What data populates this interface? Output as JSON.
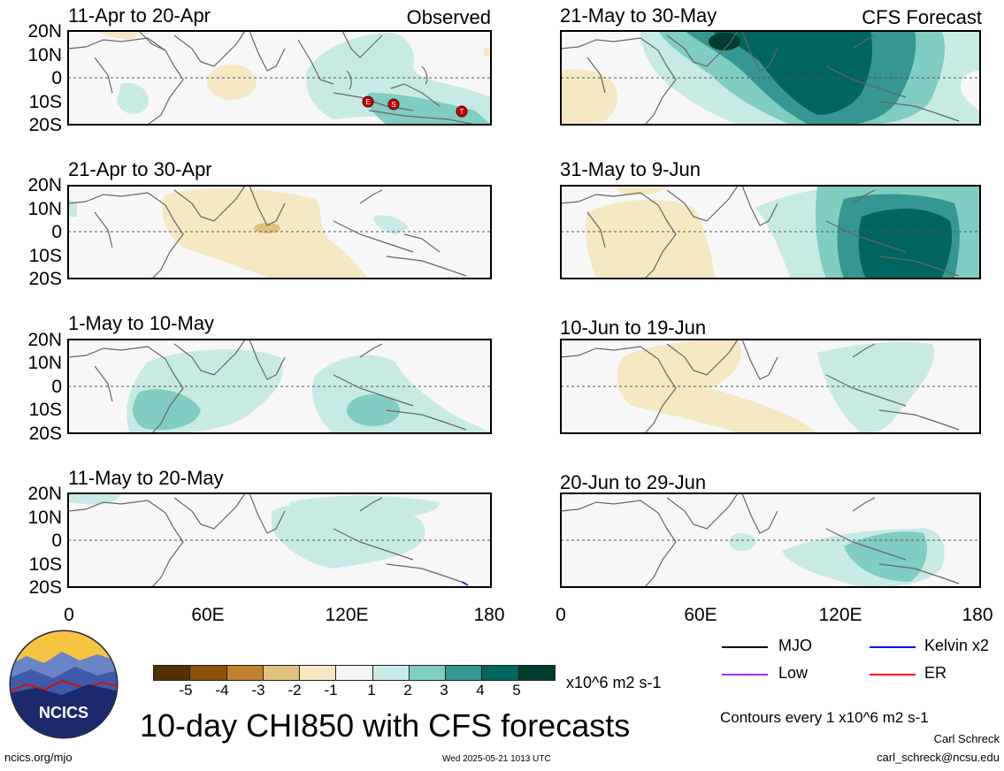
{
  "title": "10-day CHI850 with CFS forecasts",
  "observed_label": "Observed",
  "forecast_label": "CFS Forecast",
  "panels_left": [
    {
      "title": "11-Apr to 20-Apr"
    },
    {
      "title": "21-Apr to 30-Apr"
    },
    {
      "title": "1-May to 10-May"
    },
    {
      "title": "11-May to 20-May"
    }
  ],
  "panels_right": [
    {
      "title": "21-May to 30-May"
    },
    {
      "title": "31-May to 9-Jun"
    },
    {
      "title": "10-Jun to 19-Jun"
    },
    {
      "title": "20-Jun to 29-Jun"
    }
  ],
  "lat_labels": [
    "20N",
    "10N",
    "0",
    "10S",
    "20S"
  ],
  "lon_labels": [
    "0",
    "60E",
    "120E",
    "180"
  ],
  "colorbar": {
    "tick_labels": [
      "-5",
      "-4",
      "-3",
      "-2",
      "-1",
      "1",
      "2",
      "3",
      "4",
      "5"
    ],
    "colors": [
      "#543005",
      "#8c510a",
      "#bf812d",
      "#dfc27d",
      "#f6e8c3",
      "#f5f5f5",
      "#c7eae5",
      "#80cdc1",
      "#35978f",
      "#01665e",
      "#003c30"
    ],
    "units": "x10^6 m2 s-1"
  },
  "legend": {
    "mjo": "MJO",
    "kelvin": "Kelvin x2",
    "low": "Low",
    "er": "ER",
    "mjo_color": "#000000",
    "kelvin_color": "#0000ff",
    "low_color": "#9b30ff",
    "er_color": "#ff0000"
  },
  "contour_note": "Contours every 1 x10^6 m2 s-1",
  "author": "Carl Schreck",
  "email": "carl_schreck@ncsu.edu",
  "url": "ncics.org/mjo",
  "timestamp": "Wed 2025-05-21 1013 UTC",
  "logo_text": "NCICS",
  "storm_markers": [
    "E",
    "S",
    "T"
  ]
}
